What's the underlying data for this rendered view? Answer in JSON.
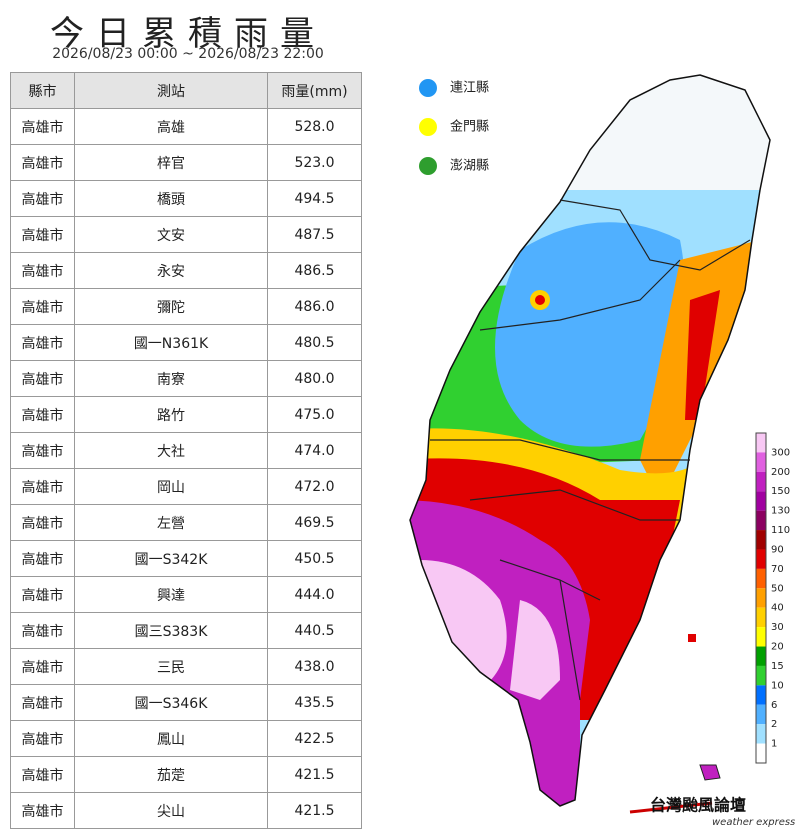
{
  "header": {
    "title": "今日累積雨量",
    "subtitle": "2026/08/23 00:00 ~ 2026/08/23 22:00"
  },
  "table": {
    "columns": [
      "縣市",
      "測站",
      "雨量(mm)"
    ],
    "rows": [
      [
        "高雄市",
        "高雄",
        "528.0"
      ],
      [
        "高雄市",
        "梓官",
        "523.0"
      ],
      [
        "高雄市",
        "橋頭",
        "494.5"
      ],
      [
        "高雄市",
        "文安",
        "487.5"
      ],
      [
        "高雄市",
        "永安",
        "486.5"
      ],
      [
        "高雄市",
        "彌陀",
        "486.0"
      ],
      [
        "高雄市",
        "國一N361K",
        "480.5"
      ],
      [
        "高雄市",
        "南寮",
        "480.0"
      ],
      [
        "高雄市",
        "路竹",
        "475.0"
      ],
      [
        "高雄市",
        "大社",
        "474.0"
      ],
      [
        "高雄市",
        "岡山",
        "472.0"
      ],
      [
        "高雄市",
        "左營",
        "469.5"
      ],
      [
        "高雄市",
        "國一S342K",
        "450.5"
      ],
      [
        "高雄市",
        "興達",
        "444.0"
      ],
      [
        "高雄市",
        "國三S383K",
        "440.5"
      ],
      [
        "高雄市",
        "三民",
        "438.0"
      ],
      [
        "高雄市",
        "國一S346K",
        "435.5"
      ],
      [
        "高雄市",
        "鳳山",
        "422.5"
      ],
      [
        "高雄市",
        "茄萣",
        "421.5"
      ],
      [
        "高雄市",
        "尖山",
        "421.5"
      ]
    ]
  },
  "islands": [
    {
      "name": "連江縣",
      "color": "#2196f3"
    },
    {
      "name": "金門縣",
      "color": "#ffff00"
    },
    {
      "name": "澎湖縣",
      "color": "#2e9e2e"
    }
  ],
  "colorbar": {
    "labels": [
      "300",
      "200",
      "150",
      "130",
      "110",
      "90",
      "70",
      "50",
      "40",
      "30",
      "20",
      "15",
      "10",
      "6",
      "2",
      "1"
    ],
    "colors": [
      "#f8c8f4",
      "#e060e0",
      "#c020c0",
      "#a000a0",
      "#8b0060",
      "#a00000",
      "#e00000",
      "#ff6000",
      "#ffa000",
      "#ffd000",
      "#ffff00",
      "#00a000",
      "#30d030",
      "#0070ff",
      "#50b0ff",
      "#a0e0ff",
      "#ffffff"
    ]
  },
  "logo": {
    "name": "台灣颱風論壇",
    "sub": "weather express"
  }
}
